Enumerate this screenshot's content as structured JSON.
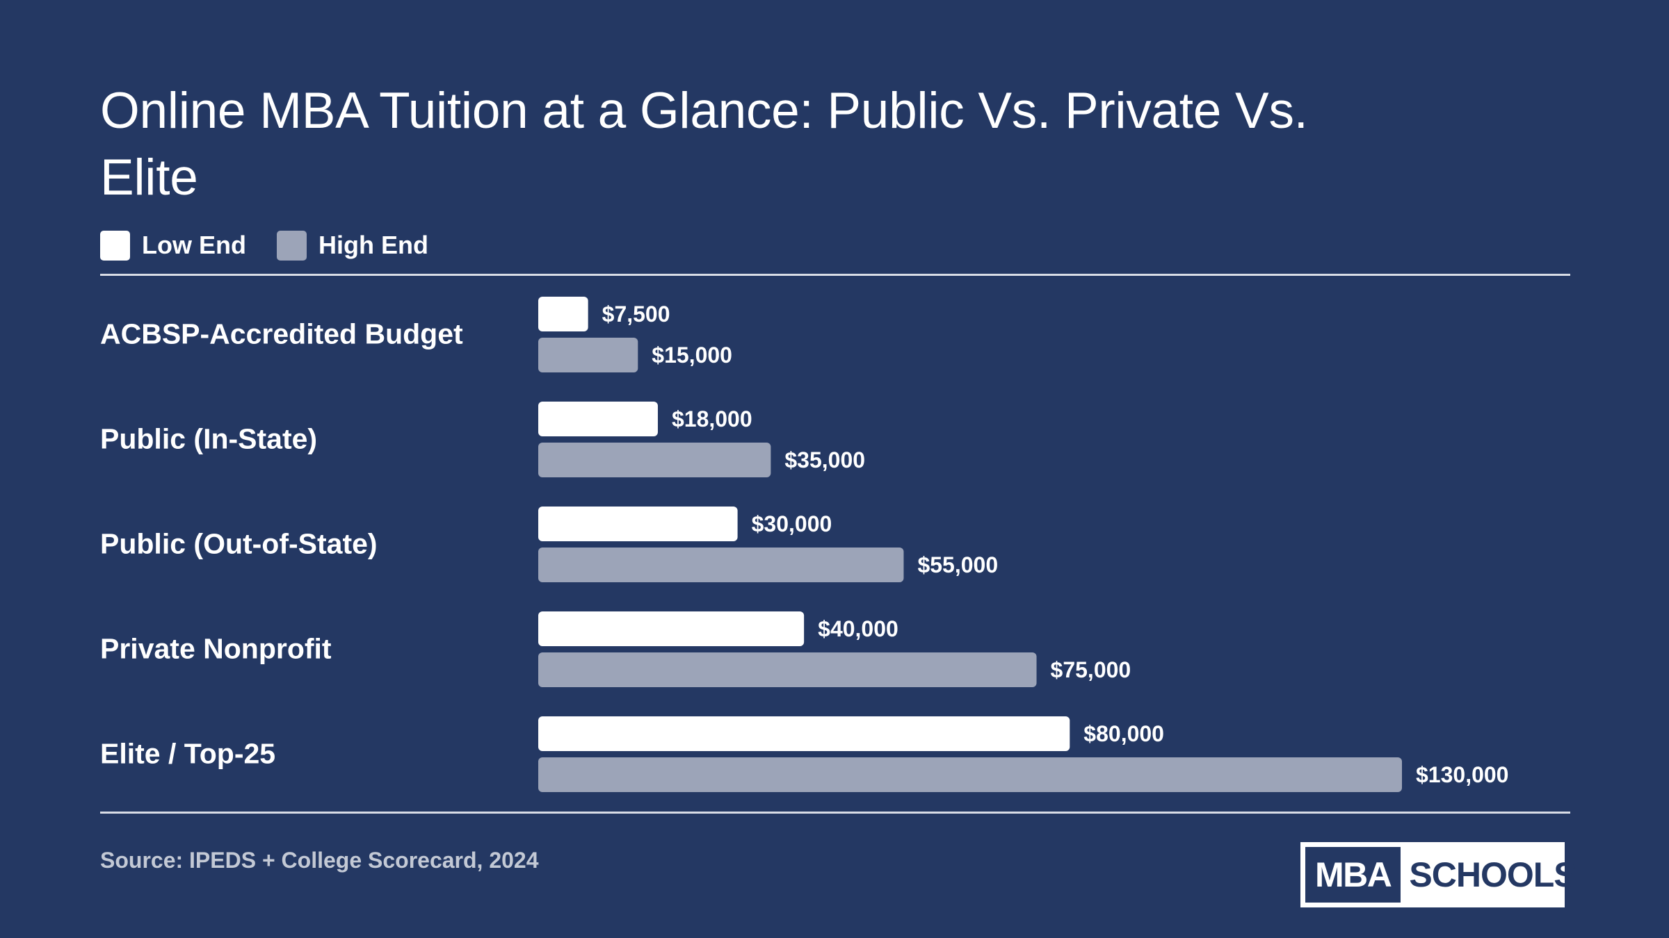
{
  "page": {
    "title": "Online MBA Tuition at a Glance: Public Vs. Private Vs. Elite",
    "source": "Source: IPEDS + College Scorecard, 2024",
    "logo": {
      "left_text": "MBA",
      "right_text": "SCHOOLS"
    },
    "colors": {
      "background": "#243863",
      "low_end": "#ffffff",
      "high_end": "#9ca4b8",
      "rule": "#d9dde6"
    }
  },
  "chart_data": {
    "type": "bar",
    "orientation": "horizontal",
    "title": "Online MBA Tuition at a Glance: Public Vs. Private Vs. Elite",
    "categories": [
      "ACBSP-Accredited Budget",
      "Public (In-State)",
      "Public (Out-of-State)",
      "Private Nonprofit",
      "Elite / Top-25"
    ],
    "series": [
      {
        "name": "Low End",
        "color": "#ffffff",
        "values": [
          7500,
          18000,
          30000,
          40000,
          80000
        ],
        "labels": [
          "$7,500",
          "$18,000",
          "$30,000",
          "$40,000",
          "$80,000"
        ]
      },
      {
        "name": "High End",
        "color": "#9ca4b8",
        "values": [
          15000,
          35000,
          55000,
          75000,
          130000
        ],
        "labels": [
          "$15,000",
          "$35,000",
          "$55,000",
          "$75,000",
          "$130,000"
        ]
      }
    ],
    "xlim": [
      0,
      130000
    ],
    "grid": false,
    "legend": "top-left"
  }
}
